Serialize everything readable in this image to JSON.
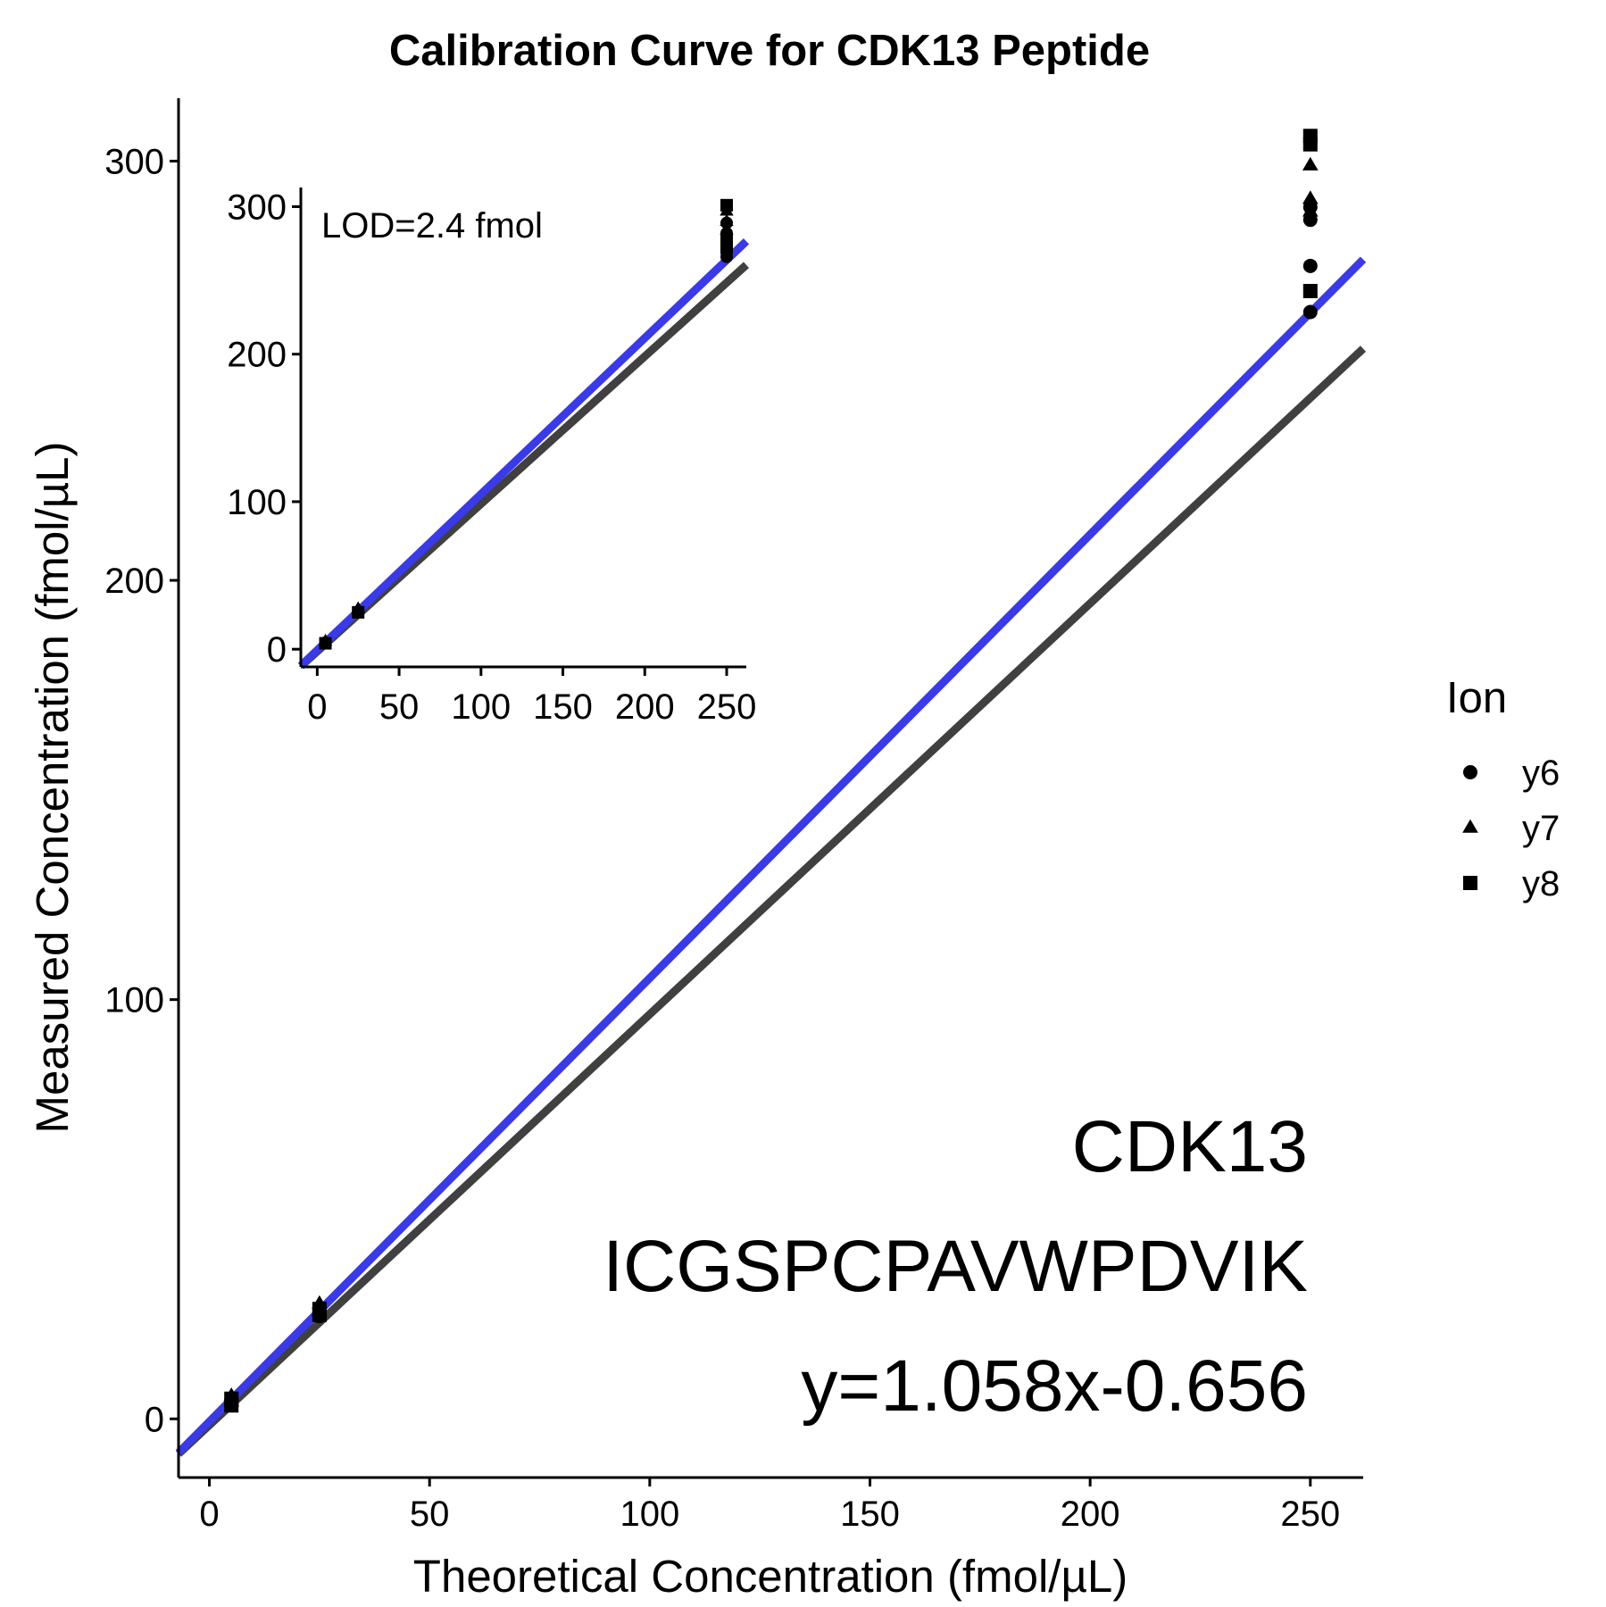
{
  "chart_data": [
    {
      "type": "scatter",
      "title": "Calibration Curve for CDK13 Peptide",
      "xlabel": "Theoretical Concentration (fmol/µL)",
      "ylabel": "Measured Concentration (fmol/µL)",
      "xlim": [
        -7,
        262
      ],
      "ylim": [
        -14,
        315
      ],
      "xticks": [
        0,
        50,
        100,
        150,
        200,
        250
      ],
      "yticks": [
        0,
        100,
        200,
        300
      ],
      "grid": false,
      "legend": {
        "title": "Ion",
        "position": "right",
        "entries": [
          {
            "name": "y6",
            "shape": "circle"
          },
          {
            "name": "y7",
            "shape": "triangle"
          },
          {
            "name": "y8",
            "shape": "square"
          }
        ]
      },
      "series": [
        {
          "name": "y6",
          "shape": "circle",
          "points": [
            [
              5,
              4.5
            ],
            [
              5,
              3.5
            ],
            [
              25,
              25.5
            ],
            [
              25,
              24.5
            ],
            [
              250,
              289
            ],
            [
              250,
              286
            ],
            [
              250,
              275
            ],
            [
              250,
              264
            ]
          ]
        },
        {
          "name": "y7",
          "shape": "triangle",
          "points": [
            [
              5,
              5.5
            ],
            [
              5,
              4.2
            ],
            [
              25,
              27.5
            ],
            [
              25,
              25.8
            ],
            [
              250,
              299
            ],
            [
              250,
              291
            ],
            [
              250,
              288
            ]
          ]
        },
        {
          "name": "y8",
          "shape": "square",
          "points": [
            [
              5,
              3.2
            ],
            [
              5,
              4.8
            ],
            [
              25,
              24.8
            ],
            [
              25,
              26.2
            ],
            [
              250,
              306
            ],
            [
              250,
              304
            ],
            [
              250,
              269
            ]
          ]
        }
      ],
      "lines": [
        {
          "label": "fit",
          "color": "#3a3ae6",
          "slope": 1.058,
          "intercept": -0.656
        },
        {
          "label": "reference",
          "color": "#404040",
          "slope": 0.98,
          "intercept": -1.5
        }
      ],
      "annotations": [
        "CDK13",
        "ICGSPCPAVWPDVIK",
        "y=1.058x-0.656"
      ]
    },
    {
      "type": "scatter",
      "xlim": [
        -10,
        262
      ],
      "ylim": [
        -12,
        313
      ],
      "xticks": [
        0,
        50,
        100,
        150,
        200,
        250
      ],
      "yticks": [
        0,
        100,
        200,
        300
      ],
      "grid": false,
      "annotation": "LOD=2.4 fmol",
      "series": [
        {
          "name": "y6",
          "shape": "circle",
          "points": [
            [
              5,
              4.5
            ],
            [
              25,
              25.5
            ],
            [
              250,
              289
            ],
            [
              250,
              282
            ],
            [
              250,
              275
            ],
            [
              250,
              266
            ]
          ]
        },
        {
          "name": "y7",
          "shape": "triangle",
          "points": [
            [
              5,
              5.5
            ],
            [
              25,
              27.5
            ],
            [
              250,
              297
            ],
            [
              250,
              290
            ],
            [
              250,
              284
            ]
          ]
        },
        {
          "name": "y8",
          "shape": "square",
          "points": [
            [
              5,
              4.0
            ],
            [
              25,
              25.0
            ],
            [
              250,
              301
            ],
            [
              250,
              278
            ],
            [
              250,
              272
            ]
          ]
        }
      ],
      "lines": [
        {
          "label": "fit",
          "color": "#3a3ae6",
          "slope": 1.058,
          "intercept": -0.656
        },
        {
          "label": "reference",
          "color": "#404040",
          "slope": 1.0,
          "intercept": -1.5
        }
      ]
    }
  ]
}
